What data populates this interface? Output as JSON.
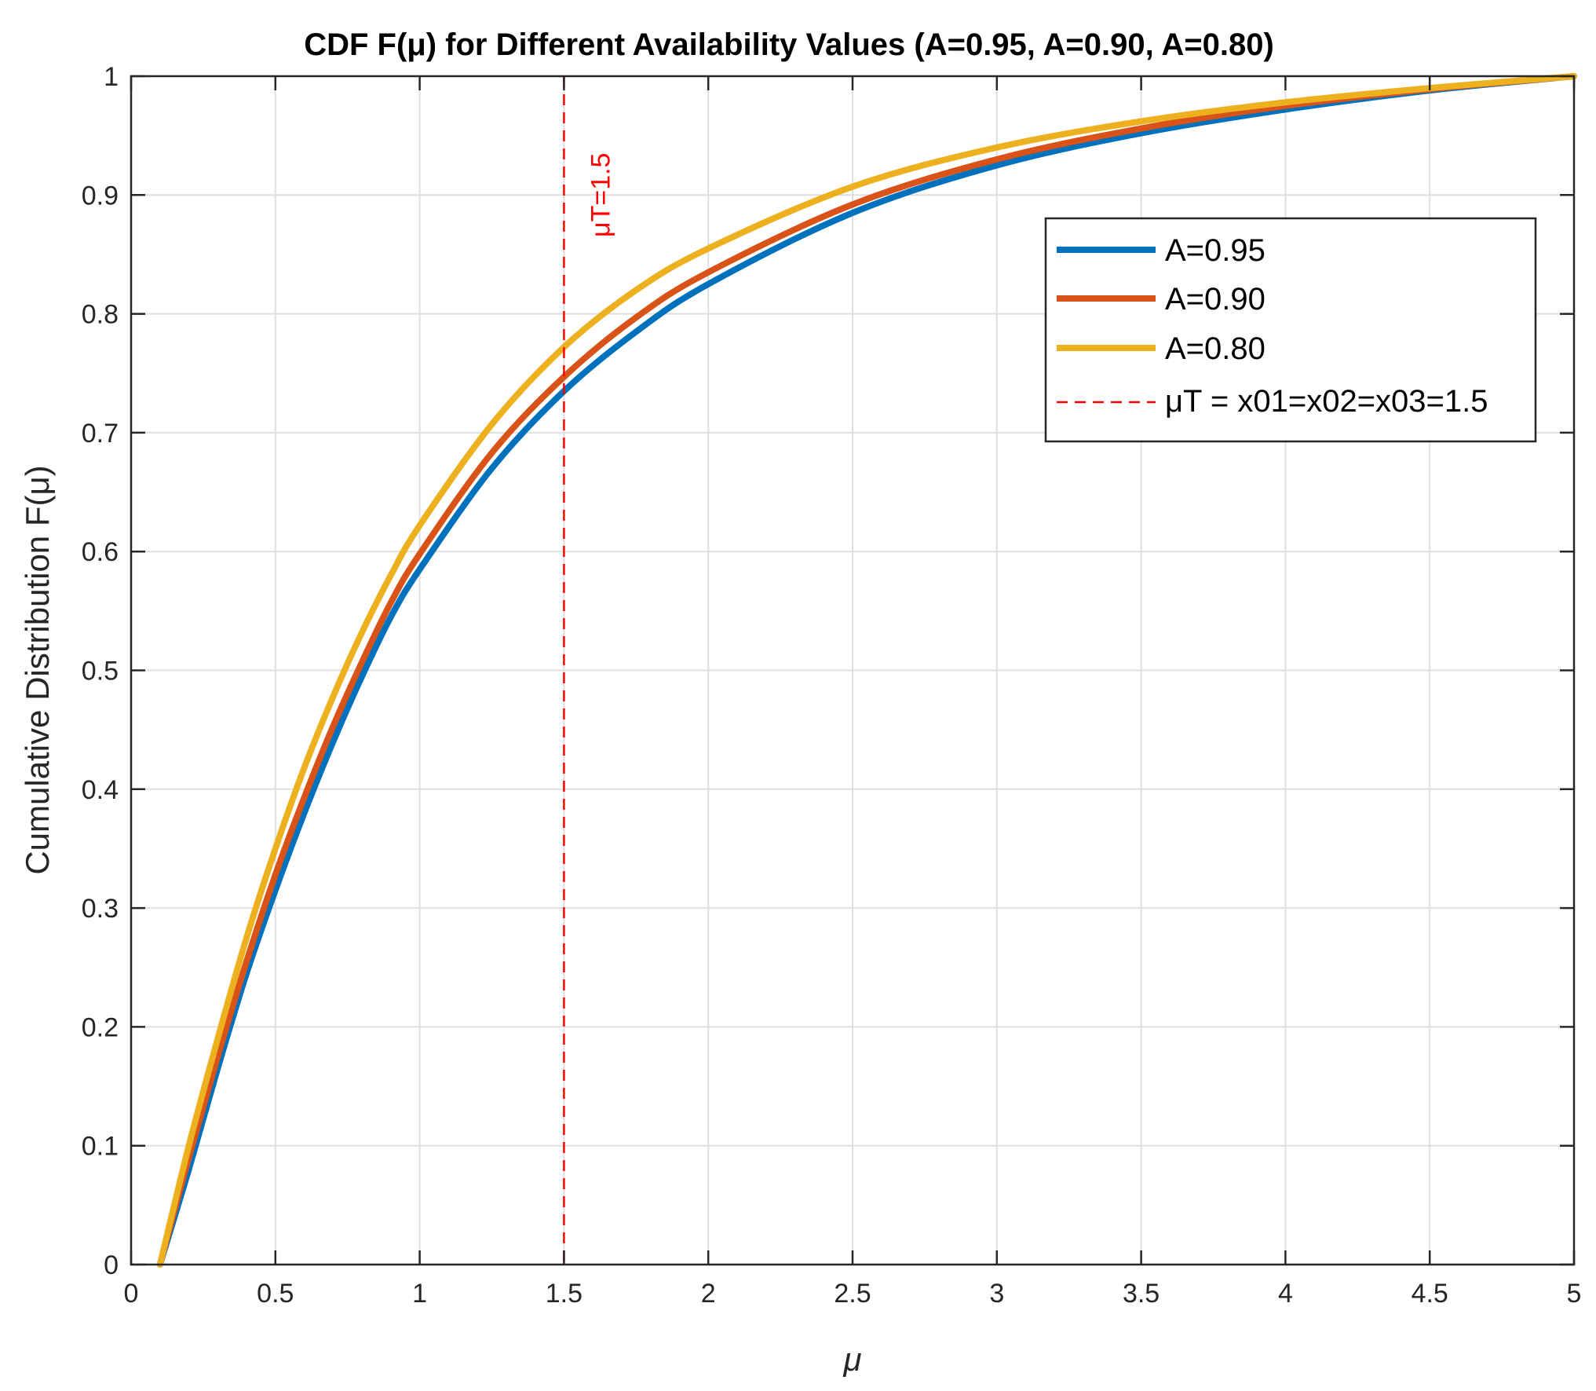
{
  "chart_data": {
    "type": "line",
    "title": "CDF F(μ) for Different Availability Values (A=0.95, A=0.90, A=0.80)",
    "xlabel": "μ",
    "ylabel": "Cumulative Distribution F(μ)",
    "xlim": [
      0,
      5
    ],
    "ylim": [
      0,
      1
    ],
    "grid": true,
    "legend_position": "top-right",
    "x_ticks": [
      "0",
      "0.5",
      "1",
      "1.5",
      "2",
      "2.5",
      "3",
      "3.5",
      "4",
      "4.5",
      "5"
    ],
    "y_ticks": [
      "0",
      "0.1",
      "0.2",
      "0.3",
      "0.4",
      "0.5",
      "0.6",
      "0.7",
      "0.8",
      "0.9",
      "1"
    ],
    "series": [
      {
        "name": "A=0.95",
        "color": "#0072BD",
        "x": [
          0.1,
          0.2,
          0.3,
          0.4,
          0.5,
          0.6,
          0.7,
          0.8,
          0.9,
          1.0,
          1.25,
          1.5,
          1.75,
          2.0,
          2.5,
          3.0,
          3.5,
          4.0,
          4.5,
          5.0
        ],
        "values": [
          0.0,
          0.08,
          0.165,
          0.245,
          0.315,
          0.38,
          0.44,
          0.495,
          0.545,
          0.585,
          0.67,
          0.735,
          0.785,
          0.825,
          0.885,
          0.925,
          0.952,
          0.972,
          0.988,
          1.0
        ]
      },
      {
        "name": "A=0.90",
        "color": "#D95319",
        "x": [
          0.1,
          0.2,
          0.3,
          0.4,
          0.5,
          0.6,
          0.7,
          0.8,
          0.9,
          1.0,
          1.25,
          1.5,
          1.75,
          2.0,
          2.5,
          3.0,
          3.5,
          4.0,
          4.5,
          5.0
        ],
        "values": [
          0.0,
          0.09,
          0.175,
          0.255,
          0.328,
          0.393,
          0.453,
          0.507,
          0.557,
          0.598,
          0.683,
          0.747,
          0.797,
          0.835,
          0.892,
          0.93,
          0.956,
          0.975,
          0.989,
          1.0
        ]
      },
      {
        "name": "A=0.80",
        "color": "#EDB120",
        "x": [
          0.1,
          0.2,
          0.3,
          0.4,
          0.5,
          0.6,
          0.7,
          0.8,
          0.9,
          1.0,
          1.25,
          1.5,
          1.75,
          2.0,
          2.5,
          3.0,
          3.5,
          4.0,
          4.5,
          5.0
        ],
        "values": [
          0.0,
          0.1,
          0.19,
          0.275,
          0.35,
          0.418,
          0.478,
          0.532,
          0.58,
          0.622,
          0.707,
          0.772,
          0.82,
          0.855,
          0.907,
          0.94,
          0.962,
          0.978,
          0.99,
          1.0
        ]
      }
    ],
    "reference_line": {
      "x": 1.5,
      "color": "#FF0000",
      "legend_label": "μT = x01=x02=x03=1.5",
      "annotation": "μT=1.5"
    }
  }
}
